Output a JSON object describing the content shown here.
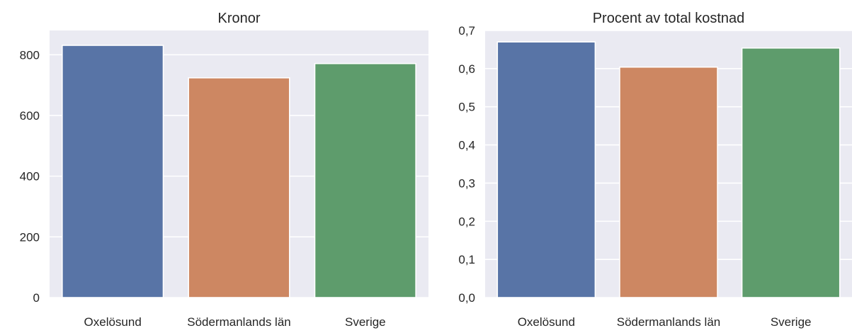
{
  "chart_data": [
    {
      "type": "bar",
      "title": "Kronor",
      "categories": [
        "Oxelösund",
        "Södermanlands län",
        "Sverige"
      ],
      "values": [
        831,
        724,
        771
      ],
      "colors": [
        "#5874a6",
        "#cd8762",
        "#5e9c6c"
      ],
      "ylim": [
        0,
        880
      ],
      "yticks": [
        0,
        200,
        400,
        600,
        800
      ],
      "ytick_labels": [
        "0",
        "200",
        "400",
        "600",
        "800"
      ],
      "grid": true,
      "background": "#eaeaf2"
    },
    {
      "type": "bar",
      "title": "Procent av total kostnad",
      "categories": [
        "Oxelösund",
        "Södermanlands län",
        "Sverige"
      ],
      "values": [
        0.67,
        0.604,
        0.654
      ],
      "colors": [
        "#5874a6",
        "#cd8762",
        "#5e9c6c"
      ],
      "ylim": [
        0,
        0.7
      ],
      "yticks": [
        0,
        0.1,
        0.2,
        0.3,
        0.4,
        0.5,
        0.6,
        0.7
      ],
      "ytick_labels": [
        "0,0",
        "0,1",
        "0,2",
        "0,3",
        "0,4",
        "0,5",
        "0,6",
        "0,7"
      ],
      "grid": true,
      "background": "#eaeaf2"
    }
  ]
}
